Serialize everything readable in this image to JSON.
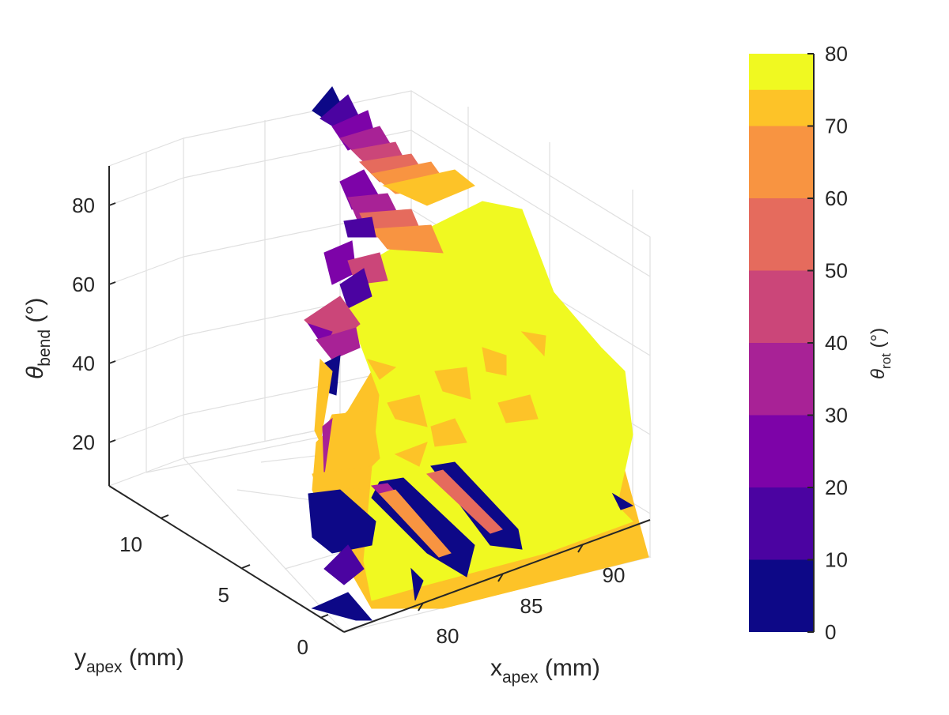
{
  "chart_data": {
    "type": "surface3d",
    "axes": {
      "x": {
        "label_main": "x",
        "label_sub": "apex",
        "label_unit": " (mm)",
        "ticks": [
          "80",
          "85",
          "90"
        ]
      },
      "y": {
        "label_main": "y",
        "label_sub": "apex",
        "label_unit": " (mm)",
        "ticks": [
          "0",
          "5",
          "10"
        ]
      },
      "z": {
        "label_main": "θ",
        "label_sub": "bend",
        "label_unit": " (°)",
        "ticks": [
          "20",
          "40",
          "60",
          "80"
        ]
      }
    },
    "colorbar": {
      "label_main": "θ",
      "label_sub": "rot",
      "label_unit": " (°)",
      "ticks": [
        "0",
        "10",
        "20",
        "30",
        "40",
        "50",
        "60",
        "70",
        "80"
      ],
      "range": [
        0,
        80
      ],
      "levels": [
        {
          "from": 0,
          "to": 10,
          "color": "#0d0887"
        },
        {
          "from": 10,
          "to": 20,
          "color": "#4b03a1"
        },
        {
          "from": 20,
          "to": 30,
          "color": "#7d03a8"
        },
        {
          "from": 30,
          "to": 40,
          "color": "#a82296"
        },
        {
          "from": 40,
          "to": 50,
          "color": "#cb4679"
        },
        {
          "from": 50,
          "to": 60,
          "color": "#e56b5d"
        },
        {
          "from": 60,
          "to": 70,
          "color": "#f89441"
        },
        {
          "from": 70,
          "to": 80,
          "color": "#fdc328"
        },
        {
          "from": 80,
          "to": 90,
          "color": "#f0f921"
        }
      ]
    },
    "grid": true,
    "colormap": "plasma"
  }
}
